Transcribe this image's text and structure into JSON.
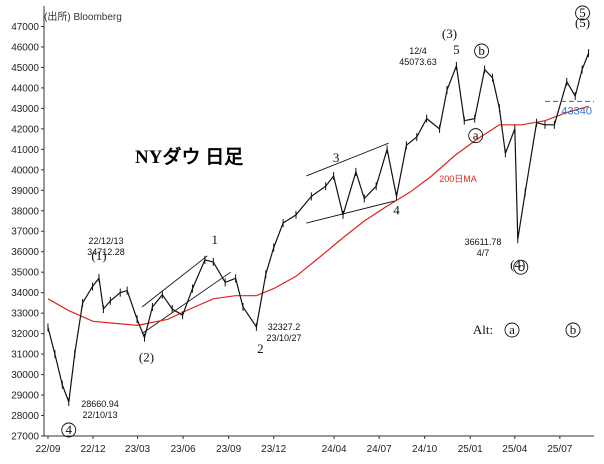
{
  "source_note": "(出所) Bloomberg",
  "chart_data": {
    "type": "line",
    "title": "NYダウ 日足",
    "ylim": [
      27000,
      48000
    ],
    "y_ticks": [
      27000,
      28000,
      29000,
      30000,
      31000,
      32000,
      33000,
      34000,
      35000,
      36000,
      37000,
      38000,
      39000,
      40000,
      41000,
      42000,
      43000,
      44000,
      45000,
      46000,
      47000
    ],
    "y_tick_labels": [
      "27000",
      "28000",
      "29000",
      "30000",
      "31000",
      "32000",
      "33000",
      "34000",
      "35000",
      "36000",
      "37000",
      "38000",
      "39000",
      "40000",
      "41000",
      "42000",
      "43000",
      "44000",
      "45000",
      "46000",
      "47000"
    ],
    "x_ticks": [
      "2022-09-01",
      "2022-12-01",
      "2023-03-01",
      "2023-06-01",
      "2023-09-01",
      "2023-12-01",
      "2024-04-01",
      "2024-07-01",
      "2024-10-01",
      "2025-01-01",
      "2025-04-01",
      "2025-07-01"
    ],
    "x_tick_labels": [
      "22/09",
      "22/12",
      "23/03",
      "23/06",
      "23/09",
      "23/12",
      "24/04",
      "24/07",
      "24/10",
      "25/01",
      "25/04",
      "25/07"
    ],
    "grid": false,
    "series": [
      {
        "name": "",
        "color": "#111111",
        "style": "candles",
        "x": [
          "2022-09-01",
          "2022-09-15",
          "2022-09-30",
          "2022-10-13",
          "2022-10-25",
          "2022-11-10",
          "2022-11-30",
          "2022-12-13",
          "2022-12-22",
          "2023-01-05",
          "2023-01-25",
          "2023-02-08",
          "2023-02-28",
          "2023-03-15",
          "2023-03-31",
          "2023-04-20",
          "2023-05-10",
          "2023-05-31",
          "2023-06-20",
          "2023-07-15",
          "2023-08-01",
          "2023-08-25",
          "2023-09-15",
          "2023-09-30",
          "2023-10-27",
          "2023-11-15",
          "2023-12-01",
          "2023-12-20",
          "2024-01-15",
          "2024-02-15",
          "2024-03-15",
          "2024-03-31",
          "2024-04-19",
          "2024-05-15",
          "2024-06-01",
          "2024-06-25",
          "2024-07-17",
          "2024-08-05",
          "2024-08-25",
          "2024-09-15",
          "2024-10-05",
          "2024-10-31",
          "2024-11-15",
          "2024-12-04",
          "2024-12-20",
          "2025-01-10",
          "2025-01-30",
          "2025-02-15",
          "2025-03-01",
          "2025-03-13",
          "2025-04-01",
          "2025-04-07",
          "2025-04-22",
          "2025-05-15",
          "2025-06-01",
          "2025-06-20",
          "2025-07-15",
          "2025-08-01",
          "2025-08-15",
          "2025-08-28"
        ],
        "values": [
          32300,
          31000,
          29500,
          28660.94,
          31000,
          33500,
          34300,
          34712.28,
          33200,
          33600,
          34000,
          34100,
          32700,
          31800,
          33300,
          33900,
          33200,
          32900,
          34200,
          35600,
          35500,
          34500,
          34700,
          33300,
          32327.2,
          34900,
          36200,
          37400,
          37800,
          38700,
          39200,
          39700,
          37800,
          39900,
          38600,
          39200,
          41000,
          38700,
          41200,
          41600,
          42500,
          42000,
          43900,
          45073.63,
          42400,
          42500,
          44900,
          44500,
          43000,
          40800,
          42000,
          36611.78,
          38900,
          42300,
          42200,
          42200,
          44300,
          43600,
          44900,
          45700
        ]
      },
      {
        "name": "200日MA",
        "color": "#e0231c",
        "x": [
          "2022-09-01",
          "2022-10-15",
          "2022-12-01",
          "2023-01-15",
          "2023-03-01",
          "2023-05-01",
          "2023-06-15",
          "2023-08-01",
          "2023-09-15",
          "2023-10-27",
          "2023-12-01",
          "2024-01-15",
          "2024-03-01",
          "2024-04-15",
          "2024-06-01",
          "2024-07-15",
          "2024-09-01",
          "2024-10-15",
          "2024-12-01",
          "2025-01-15",
          "2025-03-01",
          "2025-04-15",
          "2025-06-01",
          "2025-07-15",
          "2025-08-28"
        ],
        "values": [
          33700,
          33100,
          32600,
          32500,
          32400,
          32700,
          33200,
          33700,
          33850,
          33850,
          34200,
          34800,
          35700,
          36600,
          37500,
          38200,
          38900,
          39700,
          40700,
          41500,
          42200,
          42200,
          42400,
          42800,
          43100
        ]
      }
    ],
    "reference_lines": [
      {
        "value": 43340,
        "label": "43340",
        "color": "#2e75c7",
        "style": "dashed",
        "from": "2025-06-01"
      }
    ],
    "annotations": {
      "ma_label": "200日MA",
      "waves": [
        {
          "text": "(1)",
          "x": "2022-12-13",
          "y": 34712.28
        },
        {
          "text": "(2)",
          "x": "2023-03-15",
          "y": 31800
        },
        {
          "text": "1",
          "x": "2023-07-31",
          "y": 35600
        },
        {
          "text": "2",
          "x": "2023-10-27",
          "y": 32327.2
        },
        {
          "text": "3",
          "x": "2024-04-01",
          "y": 39700
        },
        {
          "text": "4",
          "x": "2024-08-05",
          "y": 38700
        },
        {
          "text": "(3)",
          "x": "2024-11-20",
          "y": 45073.63
        },
        {
          "text": "5",
          "x": "2024-12-04",
          "y": 45073.63
        },
        {
          "text": "(4)",
          "x": "2025-04-07",
          "y": 36611.78
        },
        {
          "text": "(5)",
          "x": "2025-08-28",
          "y": 45700
        }
      ],
      "circled_numbers": [
        {
          "text": "4",
          "x": "2022-10-13",
          "y": 28660.94
        },
        {
          "text": "5",
          "x": "2025-08-28",
          "y": 45700
        }
      ],
      "circled_letters": [
        {
          "text": "b",
          "x": "2025-01-30",
          "y": 44900
        },
        {
          "text": "a",
          "x": "2025-01-10",
          "y": 42500
        },
        {
          "text": "c",
          "x": "2025-04-07",
          "y": 36611.78
        }
      ],
      "value_labels": [
        {
          "date": "22/12/13",
          "value": "34712.28"
        },
        {
          "date": "22/10/13",
          "value": "28660.94"
        },
        {
          "date": "23/10/27",
          "value": "32327.2"
        },
        {
          "date": "12/4",
          "value": "45073.63"
        },
        {
          "date": "4/7",
          "value": "36611.78"
        }
      ],
      "alt_label": "Alt:",
      "alt_items": [
        "a",
        "b"
      ]
    },
    "legend": "none"
  }
}
